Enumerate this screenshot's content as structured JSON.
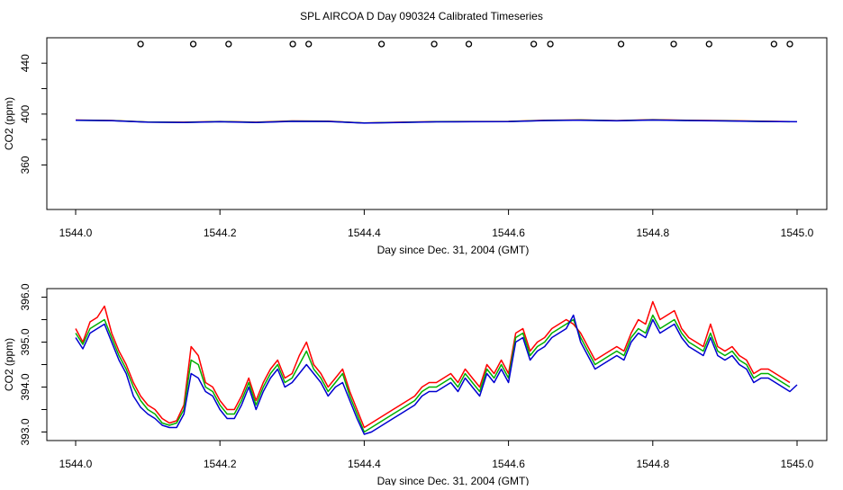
{
  "page_title": "SPL AIRCOA D  Day 090324  Calibrated Timeseries",
  "colors": {
    "red": "#ff0000",
    "green": "#00b000",
    "blue": "#0000d0",
    "frame": "#000000"
  },
  "chart_data": [
    {
      "type": "line",
      "title": "SPL AIRCOA D  Day 090324  Calibrated Timeseries",
      "xlabel": "Day since Dec. 31, 2004 (GMT)",
      "ylabel": "CO2 (ppm)",
      "xlim": [
        1544.0,
        1545.0
      ],
      "ylim": [
        330,
        455
      ],
      "xticks": [
        "1544.0",
        "1544.2",
        "1544.4",
        "1544.6",
        "1544.8",
        "1545.0"
      ],
      "yticks": [
        "360",
        "400",
        "440"
      ],
      "grid": false,
      "markers": {
        "name": "",
        "x": [
          1544.09,
          1544.163,
          1544.212,
          1544.301,
          1544.323,
          1544.424,
          1544.497,
          1544.545,
          1544.635,
          1544.658,
          1544.756,
          1544.829,
          1544.878,
          1544.968,
          1544.99
        ],
        "y": 455
      },
      "series": [
        {
          "color": "red",
          "x": [
            1544.0,
            1544.05,
            1544.1,
            1544.15,
            1544.2,
            1544.25,
            1544.3,
            1544.35,
            1544.4,
            1544.45,
            1544.5,
            1544.55,
            1544.6,
            1544.65,
            1544.7,
            1544.75,
            1544.8,
            1544.85,
            1544.9,
            1544.95,
            1544.99
          ],
          "y": [
            395.3,
            395.0,
            393.8,
            393.6,
            394.2,
            393.6,
            394.6,
            394.4,
            393.1,
            393.6,
            394.1,
            394.2,
            394.3,
            395.1,
            395.4,
            394.9,
            395.6,
            395.1,
            394.9,
            394.4,
            394.1
          ]
        },
        {
          "color": "green",
          "x": [
            1544.0,
            1544.05,
            1544.1,
            1544.15,
            1544.2,
            1544.25,
            1544.3,
            1544.35,
            1544.4,
            1544.45,
            1544.5,
            1544.55,
            1544.6,
            1544.65,
            1544.7,
            1544.75,
            1544.8,
            1544.85,
            1544.9,
            1544.95,
            1544.99
          ],
          "y": [
            395.2,
            394.9,
            393.7,
            393.5,
            394.1,
            393.5,
            394.4,
            394.3,
            393.0,
            393.5,
            394.0,
            394.1,
            394.2,
            395.0,
            395.3,
            394.8,
            395.4,
            395.0,
            394.7,
            394.3,
            394.0
          ]
        },
        {
          "color": "blue",
          "x": [
            1544.0,
            1544.05,
            1544.1,
            1544.15,
            1544.2,
            1544.25,
            1544.3,
            1544.35,
            1544.4,
            1544.45,
            1544.5,
            1544.55,
            1544.6,
            1544.65,
            1544.7,
            1544.75,
            1544.8,
            1544.85,
            1544.9,
            1544.95,
            1545.0
          ],
          "y": [
            395.1,
            394.8,
            393.6,
            393.4,
            394.0,
            393.4,
            394.3,
            394.2,
            392.9,
            393.4,
            393.9,
            394.0,
            394.1,
            394.9,
            395.2,
            394.7,
            395.3,
            394.9,
            394.6,
            394.2,
            394.0
          ]
        }
      ]
    },
    {
      "type": "line",
      "title": "",
      "xlabel": "Day since Dec. 31, 2004 (GMT)",
      "ylabel": "CO2 (ppm)",
      "xlim": [
        1544.0,
        1545.0
      ],
      "ylim": [
        392.95,
        396.05
      ],
      "xticks": [
        "1544.0",
        "1544.2",
        "1544.4",
        "1544.6",
        "1544.8",
        "1545.0"
      ],
      "yticks": [
        "393.0",
        "394.0",
        "395.0",
        "396.0"
      ],
      "grid": false,
      "series": [
        {
          "color": "red",
          "x": [
            1544.0,
            1544.01,
            1544.02,
            1544.03,
            1544.04,
            1544.05,
            1544.06,
            1544.07,
            1544.08,
            1544.09,
            1544.1,
            1544.11,
            1544.12,
            1544.13,
            1544.14,
            1544.15,
            1544.16,
            1544.17,
            1544.18,
            1544.19,
            1544.2,
            1544.21,
            1544.22,
            1544.23,
            1544.24,
            1544.25,
            1544.26,
            1544.27,
            1544.28,
            1544.29,
            1544.3,
            1544.31,
            1544.32,
            1544.33,
            1544.34,
            1544.35,
            1544.36,
            1544.37,
            1544.38,
            1544.39,
            1544.4,
            1544.41,
            1544.42,
            1544.43,
            1544.44,
            1544.45,
            1544.46,
            1544.47,
            1544.48,
            1544.49,
            1544.5,
            1544.51,
            1544.52,
            1544.53,
            1544.54,
            1544.55,
            1544.56,
            1544.57,
            1544.58,
            1544.59,
            1544.6,
            1544.61,
            1544.62,
            1544.63,
            1544.64,
            1544.65,
            1544.66,
            1544.67,
            1544.68,
            1544.69,
            1544.7,
            1544.71,
            1544.72,
            1544.73,
            1544.74,
            1544.75,
            1544.76,
            1544.77,
            1544.78,
            1544.79,
            1544.8,
            1544.81,
            1544.82,
            1544.83,
            1544.84,
            1544.85,
            1544.86,
            1544.87,
            1544.88,
            1544.89,
            1544.9,
            1544.91,
            1544.92,
            1544.93,
            1544.94,
            1544.95,
            1544.96,
            1544.97,
            1544.98,
            1544.99
          ],
          "y": [
            395.3,
            395.0,
            395.45,
            395.55,
            395.8,
            395.2,
            394.8,
            394.5,
            394.1,
            393.8,
            393.6,
            393.5,
            393.3,
            393.2,
            393.25,
            393.6,
            394.9,
            394.7,
            394.1,
            394.0,
            393.7,
            393.5,
            393.5,
            393.8,
            394.2,
            393.7,
            394.1,
            394.4,
            394.6,
            394.2,
            394.3,
            394.7,
            395.0,
            394.5,
            394.3,
            394.0,
            394.2,
            394.4,
            393.9,
            393.5,
            393.1,
            393.2,
            393.3,
            393.4,
            393.5,
            393.6,
            393.7,
            393.8,
            394.0,
            394.1,
            394.1,
            394.2,
            394.3,
            394.1,
            394.4,
            394.2,
            394.0,
            394.5,
            394.3,
            394.6,
            394.3,
            395.2,
            395.3,
            394.8,
            395.0,
            395.1,
            395.3,
            395.4,
            395.5,
            395.4,
            395.2,
            394.9,
            394.6,
            394.7,
            394.8,
            394.9,
            394.8,
            395.2,
            395.5,
            395.4,
            395.9,
            395.5,
            395.6,
            395.7,
            395.3,
            395.1,
            395.0,
            394.9,
            395.4,
            394.9,
            394.8,
            394.9,
            394.7,
            394.6,
            394.3,
            394.4,
            394.4,
            394.3,
            394.2,
            394.1
          ]
        },
        {
          "color": "green",
          "x": [
            1544.0,
            1544.01,
            1544.02,
            1544.03,
            1544.04,
            1544.05,
            1544.06,
            1544.07,
            1544.08,
            1544.09,
            1544.1,
            1544.11,
            1544.12,
            1544.13,
            1544.14,
            1544.15,
            1544.16,
            1544.17,
            1544.18,
            1544.19,
            1544.2,
            1544.21,
            1544.22,
            1544.23,
            1544.24,
            1544.25,
            1544.26,
            1544.27,
            1544.28,
            1544.29,
            1544.3,
            1544.31,
            1544.32,
            1544.33,
            1544.34,
            1544.35,
            1544.36,
            1544.37,
            1544.38,
            1544.39,
            1544.4,
            1544.41,
            1544.42,
            1544.43,
            1544.44,
            1544.45,
            1544.46,
            1544.47,
            1544.48,
            1544.49,
            1544.5,
            1544.51,
            1544.52,
            1544.53,
            1544.54,
            1544.55,
            1544.56,
            1544.57,
            1544.58,
            1544.59,
            1544.6,
            1544.61,
            1544.62,
            1544.63,
            1544.64,
            1544.65,
            1544.66,
            1544.67,
            1544.68,
            1544.69,
            1544.7,
            1544.71,
            1544.72,
            1544.73,
            1544.74,
            1544.75,
            1544.76,
            1544.77,
            1544.78,
            1544.79,
            1544.8,
            1544.81,
            1544.82,
            1544.83,
            1544.84,
            1544.85,
            1544.86,
            1544.87,
            1544.88,
            1544.89,
            1544.9,
            1544.91,
            1544.92,
            1544.93,
            1544.94,
            1544.95,
            1544.96,
            1544.97,
            1544.98,
            1544.99
          ],
          "y": [
            395.2,
            394.95,
            395.3,
            395.4,
            395.5,
            395.1,
            394.7,
            394.4,
            394.0,
            393.7,
            393.5,
            393.4,
            393.2,
            393.15,
            393.2,
            393.5,
            394.6,
            394.5,
            394.0,
            393.9,
            393.6,
            393.4,
            393.4,
            393.7,
            394.1,
            393.6,
            394.0,
            394.3,
            394.5,
            394.1,
            394.2,
            394.5,
            394.8,
            394.4,
            394.2,
            393.9,
            394.1,
            394.3,
            393.8,
            393.4,
            393.0,
            393.1,
            393.2,
            393.3,
            393.4,
            393.5,
            393.6,
            393.7,
            393.9,
            394.0,
            394.0,
            394.1,
            394.2,
            394.0,
            394.3,
            394.1,
            393.9,
            394.4,
            394.2,
            394.5,
            394.2,
            395.1,
            395.2,
            394.7,
            394.9,
            395.0,
            395.2,
            395.3,
            395.4,
            395.5,
            395.1,
            394.8,
            394.5,
            394.6,
            394.7,
            394.8,
            394.7,
            395.1,
            395.3,
            395.2,
            395.6,
            395.3,
            395.4,
            395.5,
            395.2,
            395.0,
            394.9,
            394.8,
            395.2,
            394.8,
            394.7,
            394.8,
            394.6,
            394.5,
            394.2,
            394.3,
            394.3,
            394.2,
            394.1,
            394.0
          ]
        },
        {
          "color": "blue",
          "x": [
            1544.0,
            1544.01,
            1544.02,
            1544.03,
            1544.04,
            1544.05,
            1544.06,
            1544.07,
            1544.08,
            1544.09,
            1544.1,
            1544.11,
            1544.12,
            1544.13,
            1544.14,
            1544.15,
            1544.16,
            1544.17,
            1544.18,
            1544.19,
            1544.2,
            1544.21,
            1544.22,
            1544.23,
            1544.24,
            1544.25,
            1544.26,
            1544.27,
            1544.28,
            1544.29,
            1544.3,
            1544.31,
            1544.32,
            1544.33,
            1544.34,
            1544.35,
            1544.36,
            1544.37,
            1544.38,
            1544.39,
            1544.4,
            1544.41,
            1544.42,
            1544.43,
            1544.44,
            1544.45,
            1544.46,
            1544.47,
            1544.48,
            1544.49,
            1544.5,
            1544.51,
            1544.52,
            1544.53,
            1544.54,
            1544.55,
            1544.56,
            1544.57,
            1544.58,
            1544.59,
            1544.6,
            1544.61,
            1544.62,
            1544.63,
            1544.64,
            1544.65,
            1544.66,
            1544.67,
            1544.68,
            1544.69,
            1544.7,
            1544.71,
            1544.72,
            1544.73,
            1544.74,
            1544.75,
            1544.76,
            1544.77,
            1544.78,
            1544.79,
            1544.8,
            1544.81,
            1544.82,
            1544.83,
            1544.84,
            1544.85,
            1544.86,
            1544.87,
            1544.88,
            1544.89,
            1544.9,
            1544.91,
            1544.92,
            1544.93,
            1544.94,
            1544.95,
            1544.96,
            1544.97,
            1544.98,
            1544.99,
            1545.0
          ],
          "y": [
            395.1,
            394.85,
            395.2,
            395.3,
            395.4,
            395.0,
            394.6,
            394.3,
            393.8,
            393.55,
            393.4,
            393.3,
            393.15,
            393.1,
            393.1,
            393.4,
            394.3,
            394.2,
            393.9,
            393.8,
            393.5,
            393.3,
            393.3,
            393.6,
            394.0,
            393.5,
            393.9,
            394.2,
            394.4,
            394.0,
            394.1,
            394.3,
            394.5,
            394.3,
            394.1,
            393.8,
            394.0,
            394.1,
            393.7,
            393.3,
            392.95,
            393.0,
            393.1,
            393.2,
            393.3,
            393.4,
            393.5,
            393.6,
            393.8,
            393.9,
            393.9,
            394.0,
            394.1,
            393.9,
            394.2,
            394.0,
            393.8,
            394.3,
            394.1,
            394.4,
            394.1,
            395.0,
            395.1,
            394.6,
            394.8,
            394.9,
            395.1,
            395.2,
            395.3,
            395.6,
            395.0,
            394.7,
            394.4,
            394.5,
            394.6,
            394.7,
            394.6,
            395.0,
            395.2,
            395.1,
            395.5,
            395.2,
            395.3,
            395.4,
            395.1,
            394.9,
            394.8,
            394.7,
            395.1,
            394.7,
            394.6,
            394.7,
            394.5,
            394.4,
            394.1,
            394.2,
            394.2,
            394.1,
            394.0,
            393.9,
            394.05
          ]
        }
      ]
    }
  ]
}
